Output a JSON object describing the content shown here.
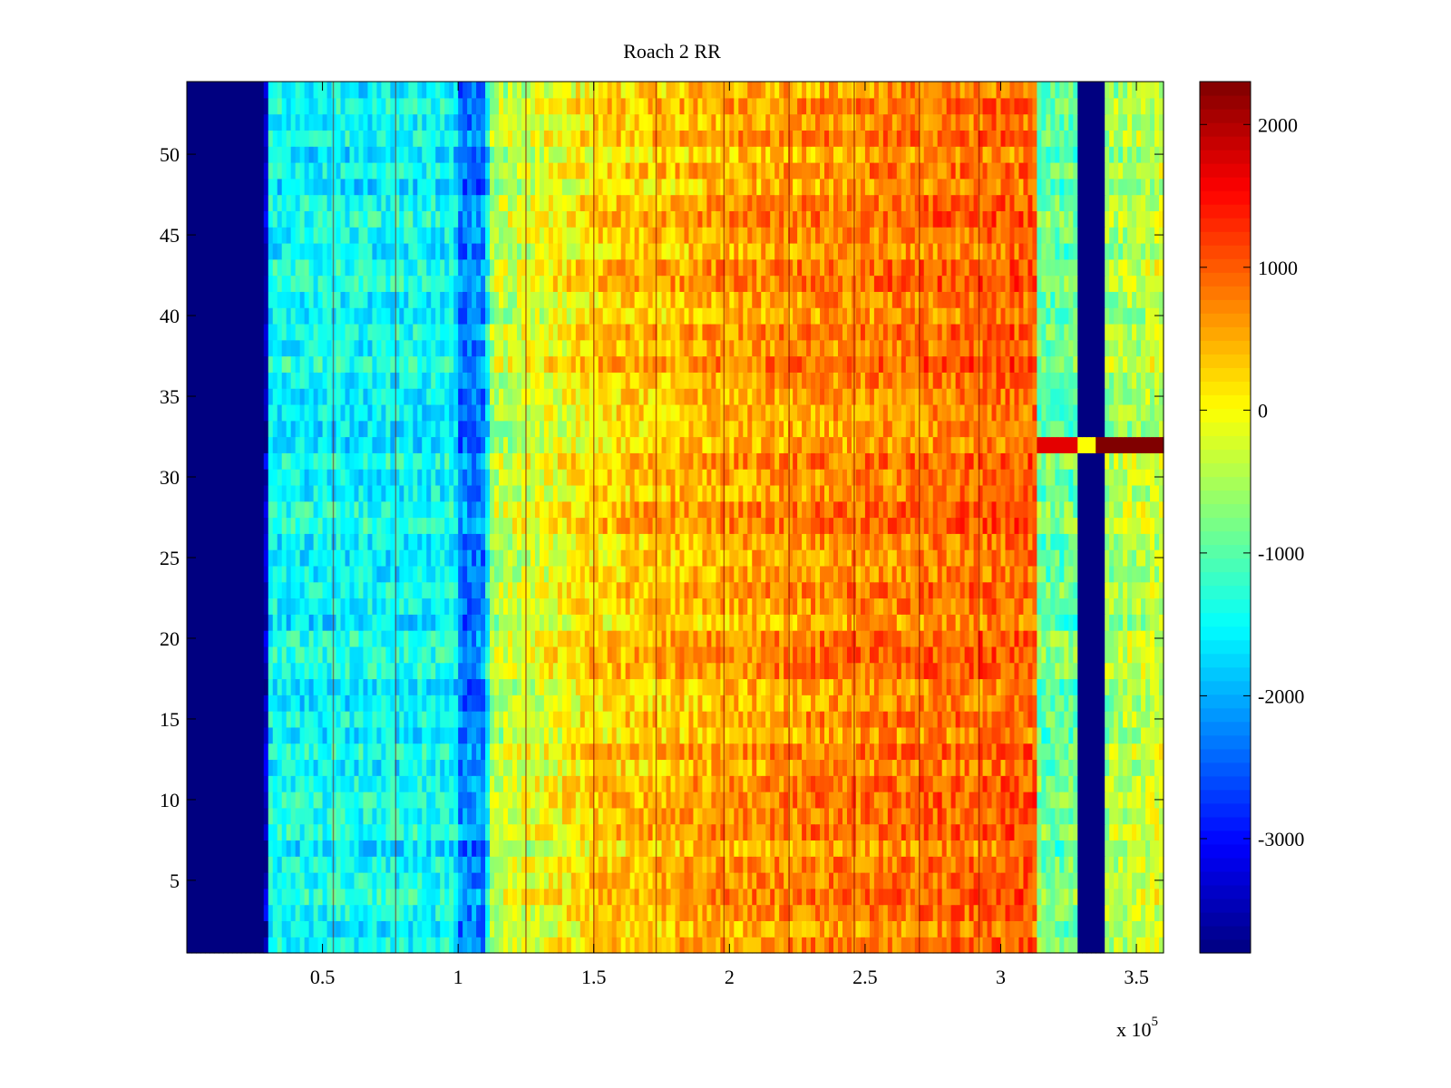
{
  "chart_data": {
    "type": "heatmap",
    "title": "Roach 2 RR",
    "xlabel": "",
    "ylabel": "",
    "x_multiplier_label": "x 10",
    "x_multiplier_exponent": "5",
    "xlim": [
      0,
      3.6
    ],
    "ylim": [
      0.5,
      54.5
    ],
    "x_ticks": [
      0.5,
      1,
      1.5,
      2,
      2.5,
      3,
      3.5
    ],
    "x_tick_labels": [
      "0.5",
      "1",
      "1.5",
      "2",
      "2.5",
      "3",
      "3.5"
    ],
    "y_ticks": [
      5,
      10,
      15,
      20,
      25,
      30,
      35,
      40,
      45,
      50
    ],
    "y_tick_labels": [
      "5",
      "10",
      "15",
      "20",
      "25",
      "30",
      "35",
      "40",
      "45",
      "50"
    ],
    "colormap": "jet",
    "clim": [
      -3800,
      2300
    ],
    "colorbar_ticks": [
      -3000,
      -2000,
      -1000,
      0,
      1000,
      2000
    ],
    "colorbar_tick_labels": [
      "-3000",
      "-2000",
      "-1000",
      "0",
      "1000",
      "2000"
    ],
    "rows": 54,
    "profile": {
      "description": "approximate mean value across channels (x in units of 10^5)",
      "x": [
        0,
        0.29,
        0.3,
        0.5,
        0.99,
        1.0,
        1.1,
        1.12,
        1.5,
        2.0,
        2.5,
        3.0,
        3.13,
        3.14,
        3.28,
        3.29,
        3.38,
        3.39,
        3.6
      ],
      "values": [
        -3800,
        -3800,
        -1500,
        -1500,
        -1500,
        -2300,
        -2300,
        -500,
        200,
        550,
        750,
        900,
        950,
        -900,
        -900,
        -3800,
        -3800,
        -600,
        -300
      ]
    },
    "special_rows": {
      "row": 32,
      "segments": [
        {
          "x0": 3.14,
          "x1": 3.28,
          "value": 1700
        },
        {
          "x0": 3.28,
          "x1": 3.35,
          "value": 0
        },
        {
          "x0": 3.35,
          "x1": 3.6,
          "value": 2300
        }
      ]
    }
  }
}
